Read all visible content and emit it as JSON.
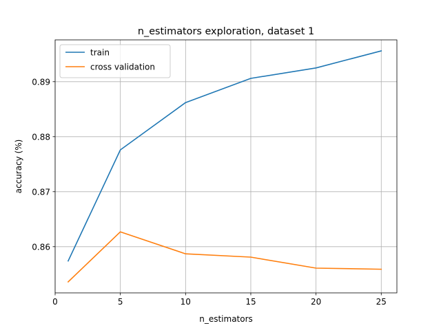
{
  "chart_data": {
    "type": "line",
    "title": "n_estimators exploration, dataset 1",
    "xlabel": "n_estimators",
    "ylabel": "accuracy (%)",
    "xlim": [
      0,
      26.2
    ],
    "ylim": [
      0.8516,
      0.8976
    ],
    "xticks": [
      0,
      5,
      10,
      15,
      20,
      25
    ],
    "yticks": [
      0.86,
      0.87,
      0.88,
      0.89
    ],
    "x": [
      1,
      5,
      10,
      15,
      20,
      25
    ],
    "grid": true,
    "legend_position": "upper-left",
    "series": [
      {
        "name": "train",
        "color": "#1f77b4",
        "values": [
          0.8574,
          0.8776,
          0.8862,
          0.8906,
          0.8925,
          0.8956
        ]
      },
      {
        "name": "cross validation",
        "color": "#ff7f0e",
        "values": [
          0.8536,
          0.8627,
          0.8587,
          0.8581,
          0.8561,
          0.8559
        ]
      }
    ]
  }
}
